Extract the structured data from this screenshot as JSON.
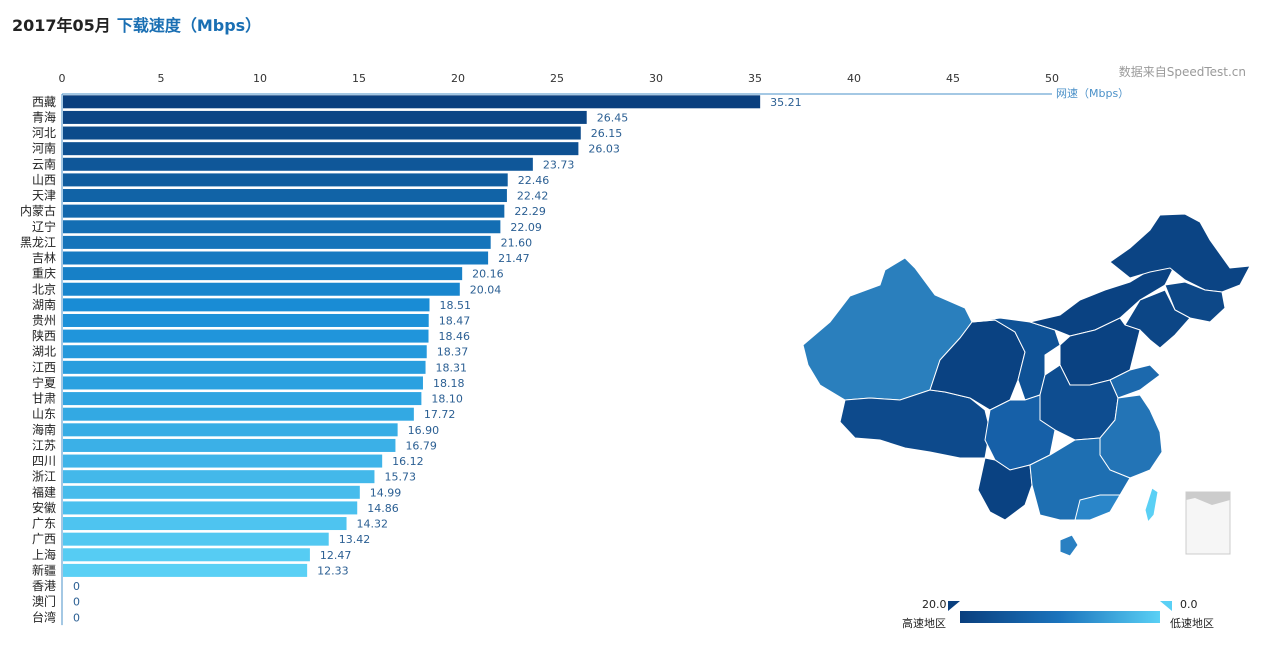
{
  "header": {
    "date": "2017年05月",
    "metric": "下载速度（Mbps）"
  },
  "source_note": "数据来自SpeedTest.cn",
  "legend": {
    "high_value": "20.0",
    "low_value": "0.0",
    "high_label": "高速地区",
    "low_label": "低速地区"
  },
  "colors": {
    "dark": "#0a3f7e",
    "mid": "#1b74bd",
    "light": "#5ad0f5",
    "axis": "#4a90c8"
  },
  "chart_data": {
    "type": "bar",
    "orientation": "horizontal",
    "x_ticks": [
      0,
      5,
      10,
      15,
      20,
      25,
      30,
      35,
      40,
      45,
      50
    ],
    "xlim": [
      0,
      50
    ],
    "series_label": "网速（Mbps）",
    "categories": [
      "西藏",
      "青海",
      "河北",
      "河南",
      "云南",
      "山西",
      "天津",
      "内蒙古",
      "辽宁",
      "黑龙江",
      "吉林",
      "重庆",
      "北京",
      "湖南",
      "贵州",
      "陕西",
      "湖北",
      "江西",
      "宁夏",
      "甘肃",
      "山东",
      "海南",
      "江苏",
      "四川",
      "浙江",
      "福建",
      "安徽",
      "广东",
      "广西",
      "上海",
      "新疆",
      "香港",
      "澳门",
      "台湾"
    ],
    "values": [
      35.21,
      26.45,
      26.15,
      26.03,
      23.73,
      22.46,
      22.42,
      22.29,
      22.09,
      21.6,
      21.47,
      20.16,
      20.04,
      18.51,
      18.47,
      18.46,
      18.37,
      18.31,
      18.18,
      18.1,
      17.72,
      16.9,
      16.79,
      16.12,
      15.73,
      14.99,
      14.86,
      14.32,
      13.42,
      12.47,
      12.33,
      0,
      0,
      0
    ],
    "value_labels": [
      "35.21",
      "26.45",
      "26.15",
      "26.03",
      "23.73",
      "22.46",
      "22.42",
      "22.29",
      "22.09",
      "21.60",
      "21.47",
      "20.16",
      "20.04",
      "18.51",
      "18.47",
      "18.46",
      "18.37",
      "18.31",
      "18.18",
      "18.10",
      "17.72",
      "16.90",
      "16.79",
      "16.12",
      "15.73",
      "14.99",
      "14.86",
      "14.32",
      "13.42",
      "12.47",
      "12.33",
      "0",
      "0",
      "0"
    ]
  }
}
